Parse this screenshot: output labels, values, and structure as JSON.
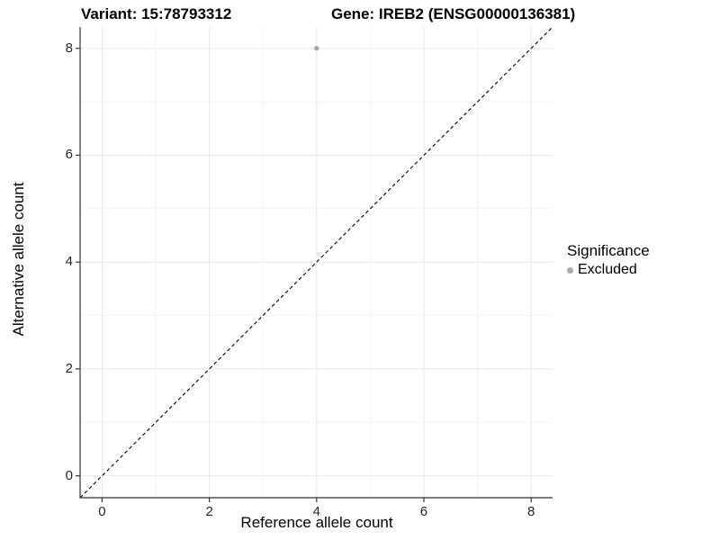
{
  "titles": {
    "left": "Variant: 15:78793312",
    "right": "Gene: IREB2 (ENSG00000136381)"
  },
  "axes": {
    "x_label": "Reference allele count",
    "y_label": "Alternative allele count"
  },
  "legend": {
    "title": "Significance",
    "items": [
      {
        "label": "Excluded",
        "color": "#a8a8a8"
      }
    ]
  },
  "colors": {
    "major_grid": "#e8e8e8",
    "minor_grid": "#f3f3f3",
    "axis_line": "#333333",
    "tick_mark": "#333333",
    "reference_line": "#000000",
    "background": "#ffffff"
  },
  "chart_data": {
    "type": "scatter",
    "title": "Variant: 15:78793312   Gene: IREB2 (ENSG00000136381)",
    "xlabel": "Reference allele count",
    "ylabel": "Alternative allele count",
    "xlim": [
      -0.41,
      8.4
    ],
    "ylim": [
      -0.41,
      8.4
    ],
    "x_ticks": [
      0,
      2,
      4,
      6,
      8
    ],
    "y_ticks": [
      0,
      2,
      4,
      6,
      8
    ],
    "x_minor_ticks": [
      1,
      3,
      5,
      7
    ],
    "y_minor_ticks": [
      1,
      3,
      5,
      7
    ],
    "grid": true,
    "legend_position": "right",
    "series": [
      {
        "name": "Excluded",
        "color": "#a8a8a8",
        "points": [
          {
            "x": 4,
            "y": 8
          }
        ]
      }
    ],
    "reference_line": {
      "type": "identity",
      "slope": 1,
      "intercept": 0,
      "style": "dashed",
      "color": "#000000"
    }
  }
}
